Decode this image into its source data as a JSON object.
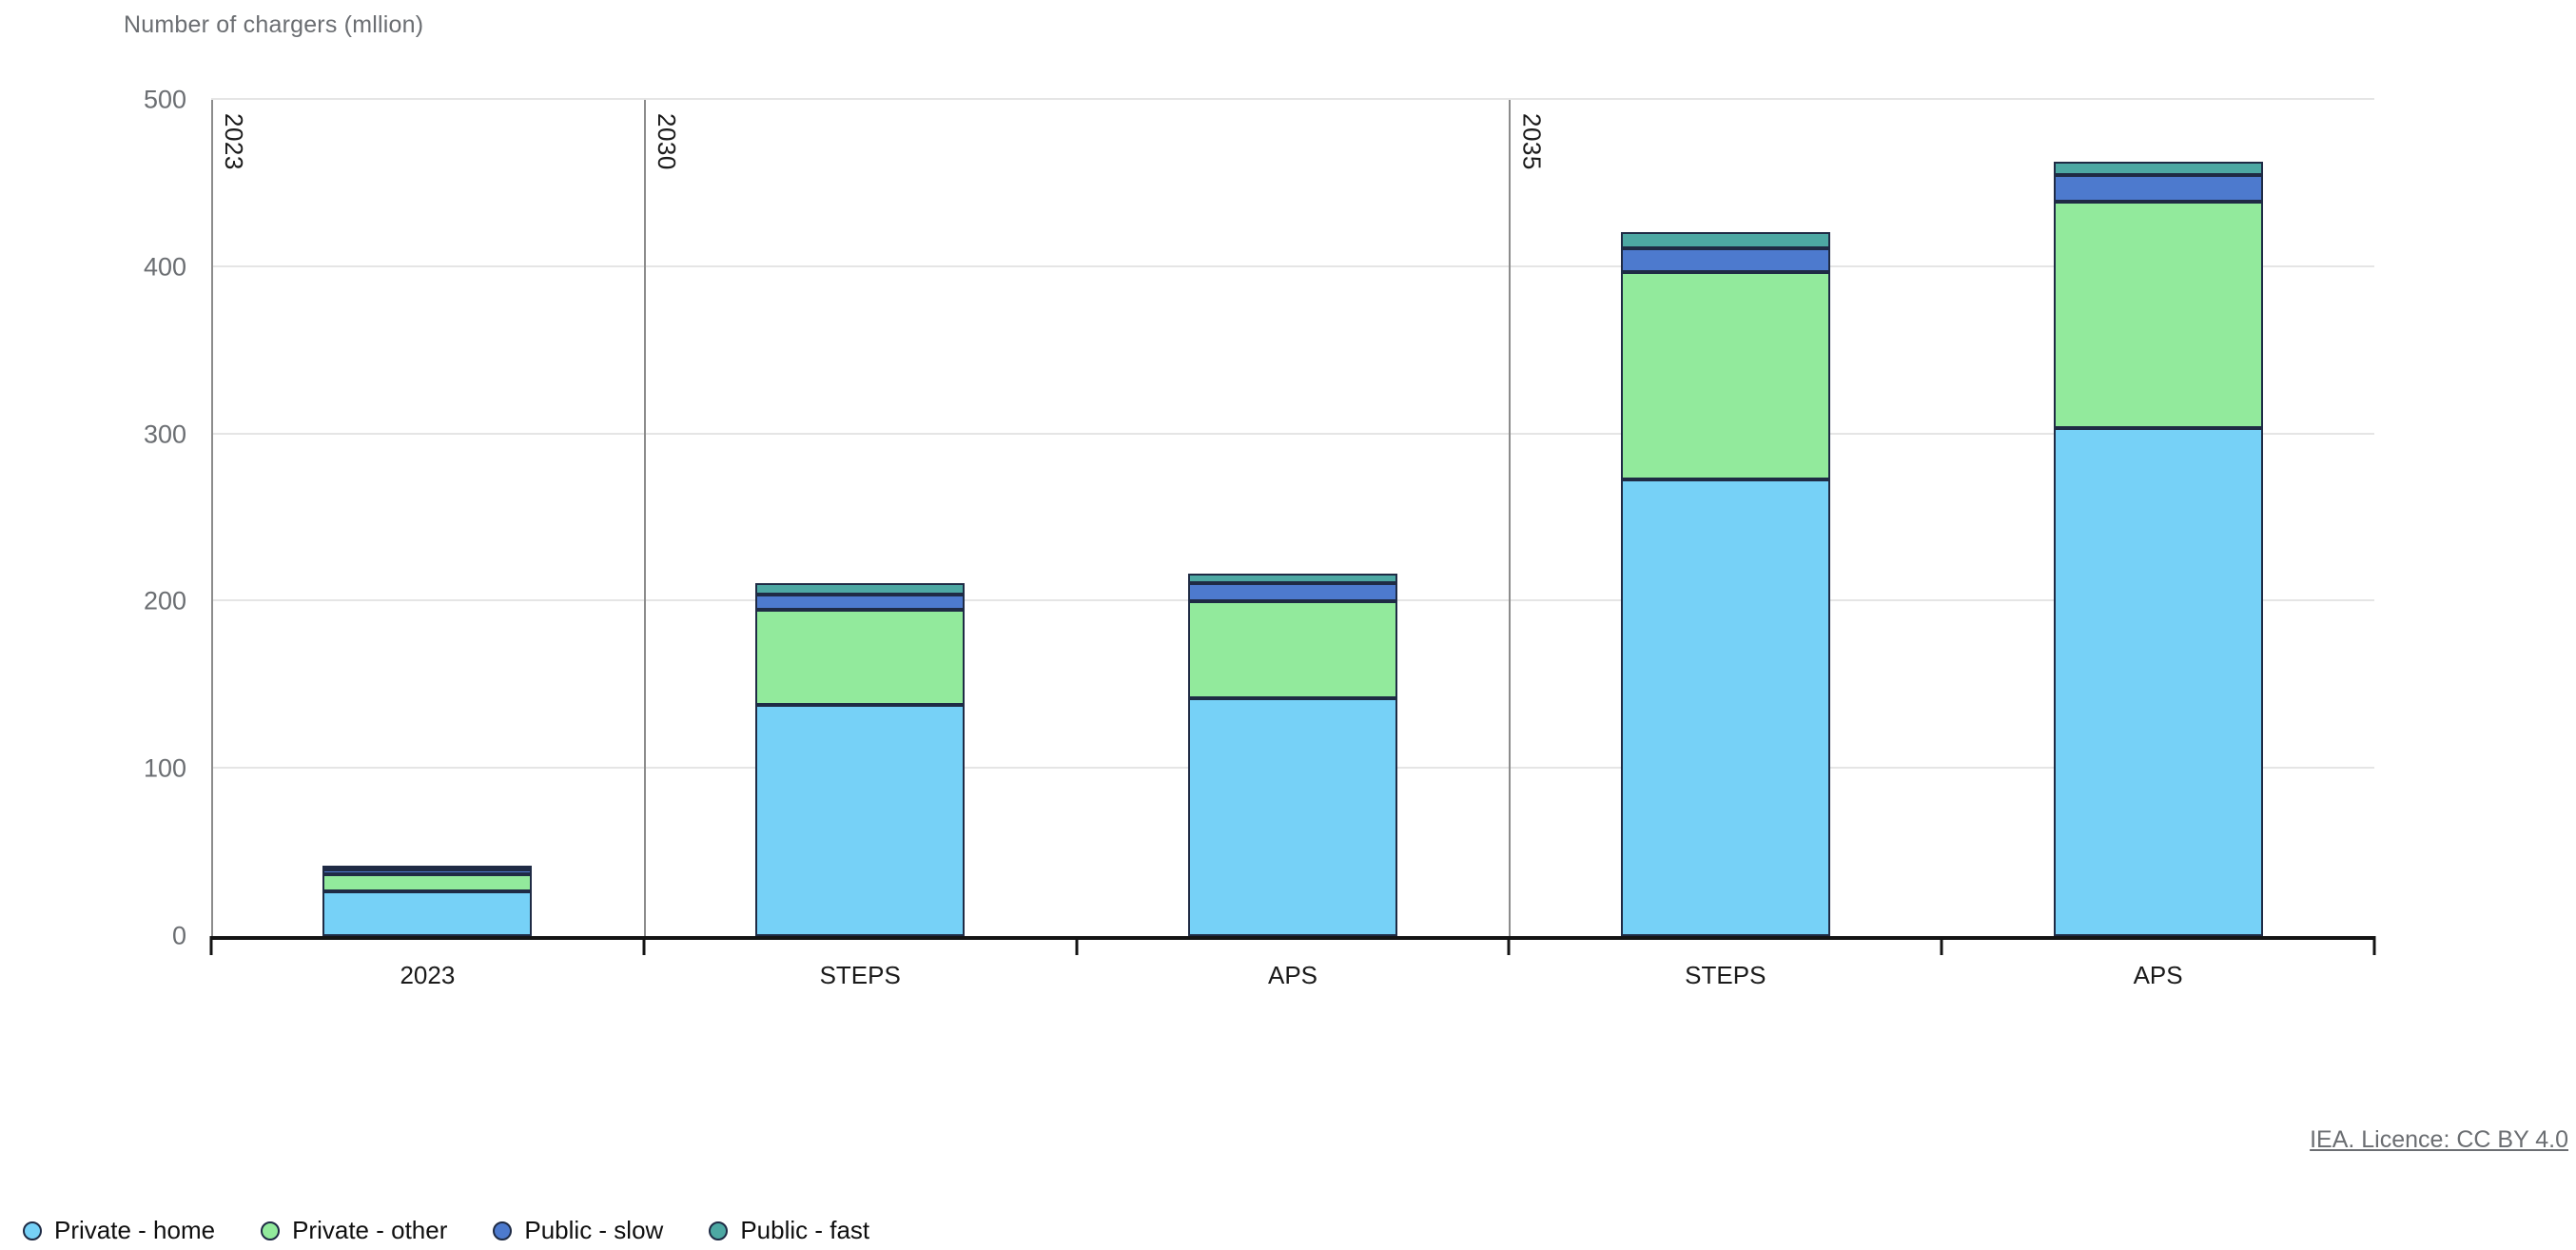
{
  "chart": {
    "title": "Number of chargers (mllion)",
    "licence_text": "IEA. Licence: CC BY 4.0"
  },
  "chart_data": {
    "type": "bar",
    "stacked": true,
    "title": "Number of chargers (mllion)",
    "ylabel": "Number of chargers (mllion)",
    "ylim": [
      0,
      500
    ],
    "yticks": [
      0,
      100,
      200,
      300,
      400,
      500
    ],
    "grid": "horizontal-light",
    "legend_position": "bottom-left",
    "groups": [
      {
        "label": "2023",
        "span": 1
      },
      {
        "label": "2030",
        "span": 2
      },
      {
        "label": "2035",
        "span": 2
      }
    ],
    "categories": [
      "2023",
      "STEPS",
      "APS",
      "STEPS",
      "APS"
    ],
    "series": [
      {
        "name": "Private - home",
        "color": "#76D1F7",
        "values": [
          27,
          138,
          142,
          273,
          304
        ]
      },
      {
        "name": "Private - other",
        "color": "#92EA9C",
        "values": [
          10,
          57,
          58,
          124,
          135
        ]
      },
      {
        "name": "Public - slow",
        "color": "#4D7ACE",
        "values": [
          3,
          9,
          11,
          14,
          16
        ]
      },
      {
        "name": "Public - fast",
        "color": "#4DA8A3",
        "values": [
          1.5,
          7,
          6,
          10,
          8
        ]
      }
    ]
  },
  "colors": {
    "segment_border": "#1F2B45",
    "axis": "#141414",
    "gridline": "#E5E5E5",
    "divider": "#8C8C8C",
    "muted_text": "#6B6E72",
    "label_text": "#1A1A1A"
  }
}
